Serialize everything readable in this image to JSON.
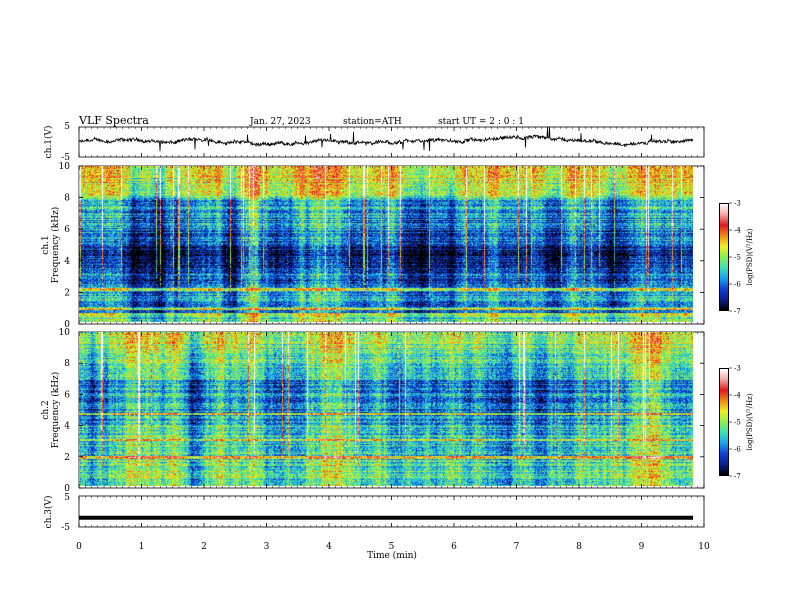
{
  "header": {
    "title": "VLF  Spectra",
    "date": "Jan. 27, 2023",
    "station": "station=ATH",
    "start": "start  UT  =   2  : 0   : 1"
  },
  "colors": {
    "waveform": "#000000",
    "colormap": [
      "#000000",
      "#0b1e8f",
      "#1040d8",
      "#16a6ee",
      "#3ee0b8",
      "#8cf04a",
      "#f0f020",
      "#f08a18",
      "#e01818",
      "#f4a6a6",
      "#ffffff"
    ]
  },
  "chart_data": [
    {
      "type": "line",
      "panel": "ch1-waveform",
      "ylabel": "ch.1(V)",
      "ylim": [
        -5,
        5
      ],
      "y_ticks": [
        "5",
        "-5"
      ],
      "xlim": [
        0,
        10
      ],
      "series": [
        {
          "values": [
            0.0
          ]
        }
      ]
    },
    {
      "type": "heatmap",
      "panel": "ch1-spectrogram",
      "ylabel_top": "ch.1",
      "ylabel": "Frequency  (kHz)",
      "ylim": [
        0,
        10
      ],
      "y_ticks": [
        "0",
        "2",
        "4",
        "6",
        "8",
        "10"
      ],
      "xlim": [
        0,
        10
      ],
      "colorbar": {
        "label": "log(PSD)(V²/Hz)",
        "range": [
          -7,
          -3
        ],
        "ticks": [
          "-3",
          "-4",
          "-5",
          "-6",
          "-7"
        ]
      }
    },
    {
      "type": "heatmap",
      "panel": "ch2-spectrogram",
      "ylabel_top": "ch.2",
      "ylabel": "Frequency  (kHz)",
      "ylim": [
        0,
        10
      ],
      "y_ticks": [
        "0",
        "2",
        "4",
        "6",
        "8",
        "10"
      ],
      "xlim": [
        0,
        10
      ],
      "colorbar": {
        "label": "log(PSD)(V²/Hz)",
        "range": [
          -7,
          -3
        ],
        "ticks": [
          "-3",
          "-4",
          "-5",
          "-6",
          "-7"
        ]
      }
    },
    {
      "type": "line",
      "panel": "ch3-waveform",
      "ylabel": "ch.3(V)",
      "ylim": [
        -5,
        5
      ],
      "y_ticks": [
        "5",
        "-5"
      ],
      "xlim": [
        0,
        10
      ],
      "series": [
        {
          "values": [
            -2.0,
            -2.0
          ]
        }
      ]
    }
  ],
  "x_axis": {
    "label": "Time  (min)",
    "ticks": [
      "0",
      "1",
      "2",
      "3",
      "4",
      "5",
      "6",
      "7",
      "8",
      "9",
      "10"
    ]
  }
}
